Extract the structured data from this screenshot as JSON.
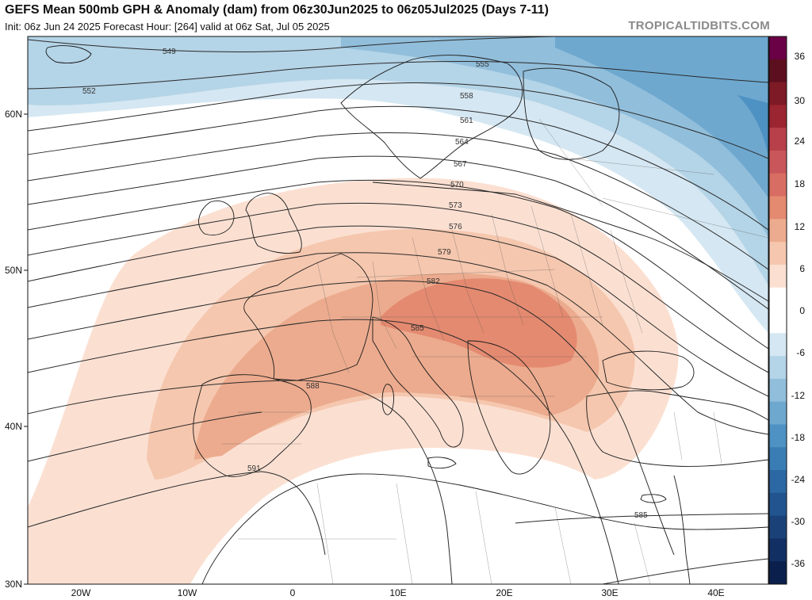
{
  "header": {
    "title": "GEFS Mean 500mb GPH & Anomaly (dam) from 06z30Jun2025 to 06z05Jul2025 (Days 7-11)",
    "init_line": "Init: 06z Jun 24 2025   Forecast Hour: [264]   valid at 06z Sat, Jul 05 2025",
    "brand": "TROPICALTIDBITS.COM"
  },
  "map": {
    "region": "Europe / Mediterranean",
    "lat_labels": [
      "60N",
      "50N",
      "40N",
      "30N"
    ],
    "lon_labels": [
      "20W",
      "10W",
      "0",
      "10E",
      "20E",
      "30E",
      "40E"
    ],
    "contour_labels": [
      "549",
      "552",
      "555",
      "558",
      "561",
      "564",
      "567",
      "570",
      "573",
      "576",
      "579",
      "582",
      "585",
      "588",
      "591",
      "585"
    ]
  },
  "colorbar": {
    "labels": [
      "36",
      "30",
      "24",
      "18",
      "12",
      "6",
      "0",
      "-6",
      "-12",
      "-18",
      "-24",
      "-30",
      "-36"
    ],
    "colors": [
      "#6a0046",
      "#5c0f1e",
      "#7d1a26",
      "#9b2530",
      "#b8404a",
      "#c9565a",
      "#d86e63",
      "#e48a70",
      "#ecab8e",
      "#f5c7ae",
      "#fbe0d2",
      "#ffffff",
      "#ffffff",
      "#d5e7f2",
      "#b4d4e7",
      "#91bedb",
      "#6ea8cf",
      "#4e92c3",
      "#3a7db5",
      "#2c68a3",
      "#22558f",
      "#1a4279",
      "#122f63",
      "#0b1f4c"
    ]
  }
}
